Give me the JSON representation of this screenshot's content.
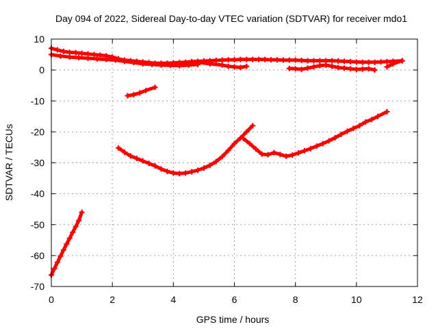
{
  "chart_data": {
    "type": "scatter",
    "title": "Day 094 of 2022, Sidereal Day-to-day VTEC variation (SDTVAR) for receiver mdo1",
    "xlabel": "GPS time / hours",
    "ylabel": "SDTVAR / TECUs",
    "xlim": [
      0,
      12
    ],
    "ylim": [
      -70,
      10
    ],
    "xticks": [
      0,
      2,
      4,
      6,
      8,
      10,
      12
    ],
    "yticks": [
      -70,
      -60,
      -50,
      -40,
      -30,
      -20,
      -10,
      0,
      10
    ],
    "grid": true,
    "legend": "none",
    "series_color": "#ff0000",
    "series": [
      {
        "x": [
          0,
          0.2,
          0.4,
          0.6,
          0.8,
          1.0,
          1.2,
          1.4,
          1.6,
          1.8,
          2.0,
          2.2,
          2.4,
          2.6,
          2.8,
          3.0,
          3.2,
          3.4,
          3.6,
          3.8,
          4.0,
          4.2,
          4.4,
          4.6,
          4.8,
          5.0,
          5.2,
          5.4,
          5.6,
          5.8,
          6.0,
          6.2,
          6.4,
          6.6,
          6.8,
          7.0,
          7.2,
          7.4,
          7.6,
          7.8,
          8.0,
          8.2,
          8.4,
          8.6,
          8.8,
          9.0,
          9.2,
          9.4,
          9.6,
          9.8,
          10.0,
          10.2,
          10.4,
          10.6,
          10.8,
          11.0,
          11.2,
          11.5
        ],
        "y": [
          7,
          6.5,
          6,
          5.7,
          5.6,
          5.4,
          5.2,
          5,
          4.8,
          4.6,
          4.2,
          3.6,
          3.2,
          3.0,
          2.8,
          2.6,
          2.4,
          2.2,
          2.2,
          2.2,
          2.3,
          2.4,
          2.5,
          2.7,
          2.8,
          2.9,
          3.0,
          3.1,
          3.2,
          3.3,
          3.3,
          3.4,
          3.4,
          3.4,
          3.4,
          3.4,
          3.3,
          3.3,
          3.2,
          3.2,
          3.2,
          3.1,
          3.0,
          3.0,
          3.0,
          3.0,
          3.0,
          2.9,
          2.8,
          2.7,
          2.6,
          2.5,
          2.5,
          2.5,
          2.6,
          2.7,
          2.8,
          3.0
        ]
      },
      {
        "x": [
          0,
          0.3,
          0.6,
          0.9,
          1.2,
          1.5,
          1.8,
          2.1,
          2.4,
          2.7,
          3.0,
          3.3,
          3.6,
          3.9,
          4.2,
          4.5,
          4.8
        ],
        "y": [
          5,
          4.5,
          4.2,
          4.0,
          3.8,
          3.6,
          3.4,
          3.2,
          2.8,
          2.4,
          2.0,
          1.8,
          1.6,
          1.5,
          1.4,
          1.6,
          1.8
        ]
      },
      {
        "x": [
          4.8,
          5.2,
          5.6,
          5.8,
          6.0,
          6.2,
          6.4
        ],
        "y": [
          2.5,
          2.0,
          1.6,
          1.2,
          1.0,
          0.8,
          1.2
        ]
      },
      {
        "x": [
          7.8,
          8.0,
          8.2,
          8.4,
          8.6,
          8.8,
          9.0,
          9.2,
          9.4,
          9.6,
          9.8,
          10.0,
          10.2,
          10.4,
          10.6
        ],
        "y": [
          0.5,
          0.4,
          0.2,
          0.6,
          1.0,
          1.4,
          1.6,
          1.2,
          0.8,
          0.6,
          0.4,
          0.2,
          0.3,
          0.4,
          0.0
        ]
      },
      {
        "x": [
          11.0,
          11.2,
          11.5
        ],
        "y": [
          1.0,
          2.0,
          3.0
        ]
      },
      {
        "x": [
          2.5,
          2.7,
          2.9,
          3.1,
          3.4
        ],
        "y": [
          -8.3,
          -8.0,
          -7.4,
          -6.6,
          -5.6
        ]
      },
      {
        "x": [
          2.2,
          2.4,
          2.6,
          2.8,
          3.0,
          3.2,
          3.4,
          3.6,
          3.8,
          4.0,
          4.2,
          4.4,
          4.6,
          4.8,
          5.0,
          5.2,
          5.4,
          5.6,
          5.8,
          6.0,
          6.2,
          6.4,
          6.6
        ],
        "y": [
          -25.2,
          -26.6,
          -27.8,
          -28.6,
          -29.4,
          -30.2,
          -31.0,
          -32.0,
          -32.8,
          -33.3,
          -33.5,
          -33.3,
          -32.9,
          -32.4,
          -31.7,
          -30.8,
          -29.6,
          -28.0,
          -26.0,
          -23.8,
          -22.0,
          -20.0,
          -18.0
        ]
      },
      {
        "x": [
          6.3,
          6.5,
          6.7,
          6.9,
          7.1,
          7.3,
          7.5,
          7.7,
          7.9,
          8.1,
          8.3,
          8.5,
          8.7,
          8.9,
          9.1,
          9.3,
          9.5,
          9.7,
          9.9,
          10.1,
          10.3,
          10.5,
          10.7,
          11.0
        ],
        "y": [
          -22.2,
          -23.8,
          -25.5,
          -27.2,
          -27.4,
          -26.7,
          -27.3,
          -27.9,
          -27.5,
          -26.8,
          -26.1,
          -25.4,
          -24.6,
          -23.8,
          -22.9,
          -21.9,
          -20.8,
          -19.8,
          -18.9,
          -18.0,
          -16.8,
          -16.0,
          -15.0,
          -13.5
        ]
      },
      {
        "x": [
          0,
          0.1,
          0.2,
          0.3,
          0.4,
          0.5,
          0.6,
          0.7,
          0.8,
          0.9,
          1.0
        ],
        "y": [
          -66.3,
          -64.2,
          -62.2,
          -60.2,
          -58.2,
          -56.3,
          -54.4,
          -52.5,
          -50.6,
          -48.7,
          -46.0
        ]
      }
    ]
  }
}
